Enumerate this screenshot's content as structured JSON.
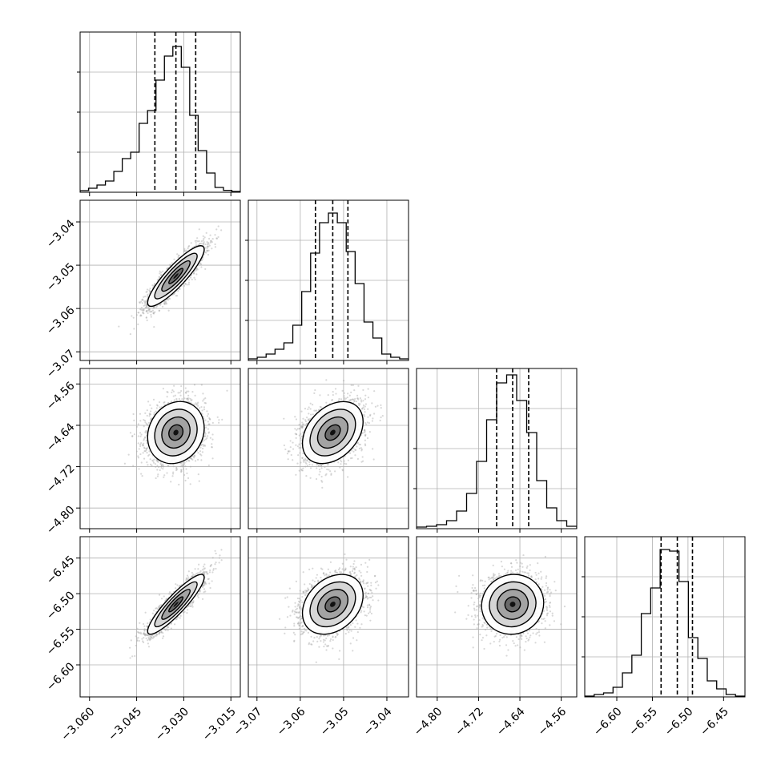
{
  "chart_data": {
    "type": "corner",
    "title": "",
    "grid": true,
    "parameters": [
      {
        "range": [
          -3.063,
          -3.012
        ],
        "ticks": [
          -3.06,
          -3.045,
          -3.03,
          -3.015
        ],
        "tick_labels": [
          "−3.060",
          "−3.045",
          "−3.030",
          "−3.015"
        ],
        "quantiles": [
          -3.0392,
          -3.0325,
          -3.0262
        ],
        "center": -3.0325,
        "sd": 0.0045,
        "hist_counts": [
          0.01,
          0.025,
          0.045,
          0.07,
          0.13,
          0.21,
          0.25,
          0.43,
          0.51,
          0.7,
          0.85,
          0.91,
          0.78,
          0.48,
          0.26,
          0.12,
          0.03,
          0.012,
          0.005
        ]
      },
      {
        "range": [
          -3.072,
          -3.035
        ],
        "ticks": [
          -3.07,
          -3.06,
          -3.05,
          -3.04
        ],
        "tick_labels": [
          "−3.07",
          "−3.06",
          "−3.05",
          "−3.04"
        ],
        "quantiles": [
          -3.0565,
          -3.0525,
          -3.049
        ],
        "center": -3.0525,
        "sd": 0.0035,
        "hist_counts": [
          0.01,
          0.02,
          0.04,
          0.07,
          0.11,
          0.22,
          0.43,
          0.67,
          0.86,
          0.92,
          0.86,
          0.68,
          0.48,
          0.24,
          0.14,
          0.04,
          0.02,
          0.01
        ]
      },
      {
        "range": [
          -4.84,
          -4.53
        ],
        "ticks": [
          -4.8,
          -4.72,
          -4.64,
          -4.56
        ],
        "tick_labels": [
          "−4.80",
          "−4.72",
          "−4.64",
          "−4.56"
        ],
        "quantiles": [
          -4.685,
          -4.654,
          -4.623
        ],
        "center": -4.654,
        "sd": 0.03,
        "hist_counts": [
          0.01,
          0.015,
          0.025,
          0.05,
          0.11,
          0.22,
          0.42,
          0.68,
          0.91,
          0.96,
          0.8,
          0.6,
          0.3,
          0.13,
          0.05,
          0.015
        ]
      },
      {
        "range": [
          -6.645,
          -6.42
        ],
        "ticks": [
          -6.6,
          -6.55,
          -6.5,
          -6.45
        ],
        "tick_labels": [
          "−6.60",
          "−6.55",
          "−6.50",
          "−6.45"
        ],
        "quantiles": [
          -6.5378,
          -6.515,
          -6.4937
        ],
        "center": -6.515,
        "sd": 0.021,
        "hist_counts": [
          0.005,
          0.015,
          0.025,
          0.06,
          0.15,
          0.26,
          0.52,
          0.68,
          0.92,
          0.91,
          0.72,
          0.37,
          0.24,
          0.1,
          0.05,
          0.015,
          0.005
        ]
      }
    ],
    "correlations": [
      [
        1,
        0.88,
        0.15,
        0.9
      ],
      [
        0.88,
        1,
        0.35,
        0.3
      ],
      [
        0.15,
        0.35,
        1,
        0.05
      ],
      [
        0.9,
        0.3,
        0.05,
        1
      ]
    ],
    "samples_per_panel": 2200,
    "contour_levels_sigma": [
      0.5,
      1.0,
      1.5,
      2.0
    ]
  }
}
